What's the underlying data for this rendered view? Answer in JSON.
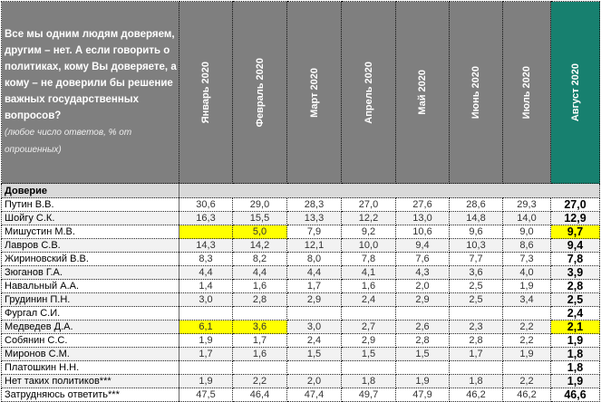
{
  "header": {
    "question": "Все мы одним людям доверяем, другим – нет. А если говорить о политиках, кому Вы доверяете, а кому – не доверили бы решение важных государственных вопросов?",
    "note": "(любое число ответов, % от опрошенных)",
    "months": [
      "Январь 2020",
      "Февраль 2020",
      "Март 2020",
      "Апрель 2020",
      "Май 2020",
      "Июнь 2020",
      "Июль 2020",
      "Август 2020"
    ]
  },
  "section": "Доверие",
  "colors": {
    "header_bg": "#7f7f7f",
    "highlight_column": "#17806f",
    "highlight_cell": "#ffff00"
  },
  "rows": [
    {
      "name": "Путин В.В.",
      "values": [
        "30,6",
        "29,0",
        "28,3",
        "27,0",
        "27,6",
        "28,6",
        "29,3",
        "27,0"
      ],
      "hl": []
    },
    {
      "name": "Шойгу С.К.",
      "values": [
        "16,3",
        "15,5",
        "13,3",
        "12,2",
        "13,0",
        "14,8",
        "14,0",
        "12,9"
      ],
      "hl": []
    },
    {
      "name": "Мишустин М.В.",
      "values": [
        "",
        "5,0",
        "7,9",
        "9,2",
        "10,6",
        "9,6",
        "9,0",
        "9,7"
      ],
      "hl": [
        0,
        1,
        7
      ]
    },
    {
      "name": "Лавров С.В.",
      "values": [
        "14,3",
        "14,2",
        "12,1",
        "10,0",
        "9,4",
        "10,3",
        "8,6",
        "9,4"
      ],
      "hl": []
    },
    {
      "name": "Жириновский В.В.",
      "values": [
        "8,3",
        "8,2",
        "8,0",
        "7,8",
        "7,6",
        "7,7",
        "7,3",
        "7,8"
      ],
      "hl": []
    },
    {
      "name": "Зюганов Г.А.",
      "values": [
        "4,4",
        "4,4",
        "4,4",
        "4,1",
        "4,3",
        "3,6",
        "4,0",
        "3,9"
      ],
      "hl": []
    },
    {
      "name": "Навальный А.А.",
      "values": [
        "1,4",
        "1,6",
        "1,7",
        "1,6",
        "2,0",
        "2,5",
        "1,9",
        "2,8"
      ],
      "hl": []
    },
    {
      "name": "Грудинин П.Н.",
      "values": [
        "3,0",
        "2,8",
        "2,9",
        "2,4",
        "2,9",
        "2,5",
        "3,4",
        "2,5"
      ],
      "hl": []
    },
    {
      "name": "Фургал С.И.",
      "values": [
        "",
        "",
        "",
        "",
        "",
        "",
        "",
        "2,4"
      ],
      "hl": []
    },
    {
      "name": "Медведев Д.А.",
      "values": [
        "6,1",
        "3,6",
        "3,0",
        "2,7",
        "2,6",
        "2,3",
        "2,2",
        "2,1"
      ],
      "hl": [
        0,
        1,
        7
      ]
    },
    {
      "name": "Собянин С.С.",
      "values": [
        "1,9",
        "1,7",
        "2,4",
        "2,9",
        "2,8",
        "2,8",
        "2,2",
        "1,9"
      ],
      "hl": []
    },
    {
      "name": "Миронов С.М.",
      "values": [
        "1,7",
        "1,6",
        "1,5",
        "1,5",
        "1,5",
        "1,7",
        "1,9",
        "1,8"
      ],
      "hl": []
    },
    {
      "name": "Платошкин Н.Н.",
      "values": [
        "",
        "",
        "",
        "",
        "",
        "",
        "",
        "1,8"
      ],
      "hl": []
    },
    {
      "name": "Нет таких политиков***",
      "values": [
        "1,9",
        "2,2",
        "2,0",
        "1,8",
        "1,9",
        "1,8",
        "2,2",
        "1,9"
      ],
      "hl": []
    },
    {
      "name": "Затрудняюсь ответить***",
      "values": [
        "47,5",
        "46,4",
        "47,4",
        "49,7",
        "47,9",
        "46,2",
        "46,2",
        "46,6"
      ],
      "hl": []
    }
  ]
}
